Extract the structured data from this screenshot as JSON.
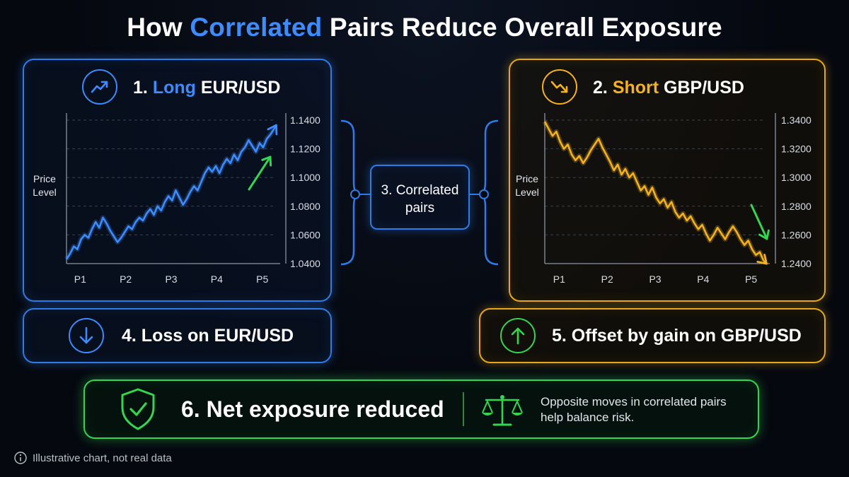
{
  "title": {
    "prefix": "How ",
    "highlight": "Correlated",
    "suffix": " Pairs Reduce Overall Exposure"
  },
  "left_panel": {
    "number": "1.",
    "action": "Long",
    "pair": "EUR/USD",
    "icon": "trend-up-icon"
  },
  "right_panel": {
    "number": "2.",
    "action": "Short",
    "pair": "GBP/USD",
    "icon": "trend-down-icon"
  },
  "center": {
    "line1": "3. Correlated",
    "line2": "pairs"
  },
  "loss_box": {
    "label": "4. Loss on EUR/USD",
    "icon": "arrow-down-icon"
  },
  "gain_box": {
    "label": "5. Offset by gain on GBP/USD",
    "icon": "arrow-up-icon"
  },
  "net_box": {
    "label": "6. Net exposure reduced",
    "icon": "shield-check-icon",
    "scale_icon": "balance-scale-icon",
    "note_line1": "Opposite moves in correlated pairs",
    "note_line2": "help balance risk."
  },
  "footnote": {
    "icon": "info-icon",
    "text": "Illustrative chart, not real data"
  },
  "colors": {
    "blue": "#3d8bfd",
    "gold": "#f5b21c",
    "green": "#35d64f",
    "background": "#05080f"
  },
  "chart_data": [
    {
      "type": "line",
      "title": "",
      "ylabel_line1": "Price",
      "ylabel_line2": "Level",
      "categories": [
        "P1",
        "P2",
        "P3",
        "P4",
        "P5"
      ],
      "yticks": [
        "1.0400",
        "1.0600",
        "1.0800",
        "1.1000",
        "1.1200",
        "1.1400"
      ],
      "ylim": [
        1.04,
        1.14
      ],
      "xlim": [
        0.7,
        5.3
      ],
      "grid": true,
      "color": "#3d8bfd",
      "trend": "up",
      "series": [
        {
          "x": [
            0.7,
            0.78,
            0.86,
            0.94,
            1.02,
            1.1,
            1.18,
            1.26,
            1.34,
            1.42,
            1.5,
            1.58,
            1.66,
            1.74,
            1.82,
            1.9,
            1.98,
            2.06,
            2.14,
            2.22,
            2.3,
            2.38,
            2.46,
            2.54,
            2.62,
            2.7,
            2.78,
            2.86,
            2.94,
            3.02,
            3.1,
            3.18,
            3.26,
            3.34,
            3.42,
            3.5,
            3.58,
            3.66,
            3.74,
            3.82,
            3.9,
            3.98,
            4.06,
            4.14,
            4.22,
            4.3,
            4.38,
            4.46,
            4.54,
            4.62,
            4.7,
            4.78,
            4.86,
            4.94,
            5.02,
            5.1,
            5.18,
            5.26
          ],
          "y": [
            1.043,
            1.047,
            1.052,
            1.05,
            1.057,
            1.06,
            1.058,
            1.064,
            1.069,
            1.065,
            1.072,
            1.068,
            1.063,
            1.059,
            1.055,
            1.058,
            1.062,
            1.066,
            1.064,
            1.069,
            1.072,
            1.07,
            1.075,
            1.078,
            1.074,
            1.08,
            1.077,
            1.083,
            1.087,
            1.084,
            1.091,
            1.086,
            1.081,
            1.085,
            1.09,
            1.094,
            1.091,
            1.097,
            1.103,
            1.107,
            1.104,
            1.108,
            1.103,
            1.109,
            1.113,
            1.11,
            1.116,
            1.112,
            1.118,
            1.121,
            1.126,
            1.122,
            1.118,
            1.124,
            1.121,
            1.127,
            1.13,
            1.134
          ]
        }
      ]
    },
    {
      "type": "line",
      "title": "",
      "ylabel_line1": "Price",
      "ylabel_line2": "Level",
      "categories": [
        "P1",
        "P2",
        "P3",
        "P4",
        "P5"
      ],
      "yticks": [
        "1.2400",
        "1.2600",
        "1.2800",
        "1.3000",
        "1.3200",
        "1.3400"
      ],
      "ylim": [
        1.24,
        1.34
      ],
      "xlim": [
        0.7,
        5.3
      ],
      "grid": true,
      "color": "#f5b21c",
      "trend": "down",
      "series": [
        {
          "x": [
            0.7,
            0.78,
            0.86,
            0.94,
            1.02,
            1.1,
            1.18,
            1.26,
            1.34,
            1.42,
            1.5,
            1.58,
            1.66,
            1.74,
            1.82,
            1.9,
            1.98,
            2.06,
            2.14,
            2.22,
            2.3,
            2.38,
            2.46,
            2.54,
            2.62,
            2.7,
            2.78,
            2.86,
            2.94,
            3.02,
            3.1,
            3.18,
            3.26,
            3.34,
            3.42,
            3.5,
            3.58,
            3.66,
            3.74,
            3.82,
            3.9,
            3.98,
            4.06,
            4.14,
            4.22,
            4.3,
            4.38,
            4.46,
            4.54,
            4.62,
            4.7,
            4.78,
            4.86,
            4.94,
            5.02,
            5.1,
            5.18,
            5.26
          ],
          "y": [
            1.339,
            1.334,
            1.329,
            1.332,
            1.325,
            1.32,
            1.323,
            1.316,
            1.312,
            1.315,
            1.31,
            1.314,
            1.319,
            1.323,
            1.327,
            1.321,
            1.316,
            1.311,
            1.305,
            1.309,
            1.302,
            1.306,
            1.3,
            1.303,
            1.297,
            1.291,
            1.294,
            1.288,
            1.293,
            1.286,
            1.282,
            1.285,
            1.279,
            1.283,
            1.276,
            1.272,
            1.275,
            1.27,
            1.273,
            1.268,
            1.264,
            1.267,
            1.261,
            1.256,
            1.26,
            1.265,
            1.261,
            1.257,
            1.262,
            1.266,
            1.262,
            1.257,
            1.253,
            1.256,
            1.25,
            1.246,
            1.248,
            1.242
          ]
        }
      ]
    }
  ]
}
